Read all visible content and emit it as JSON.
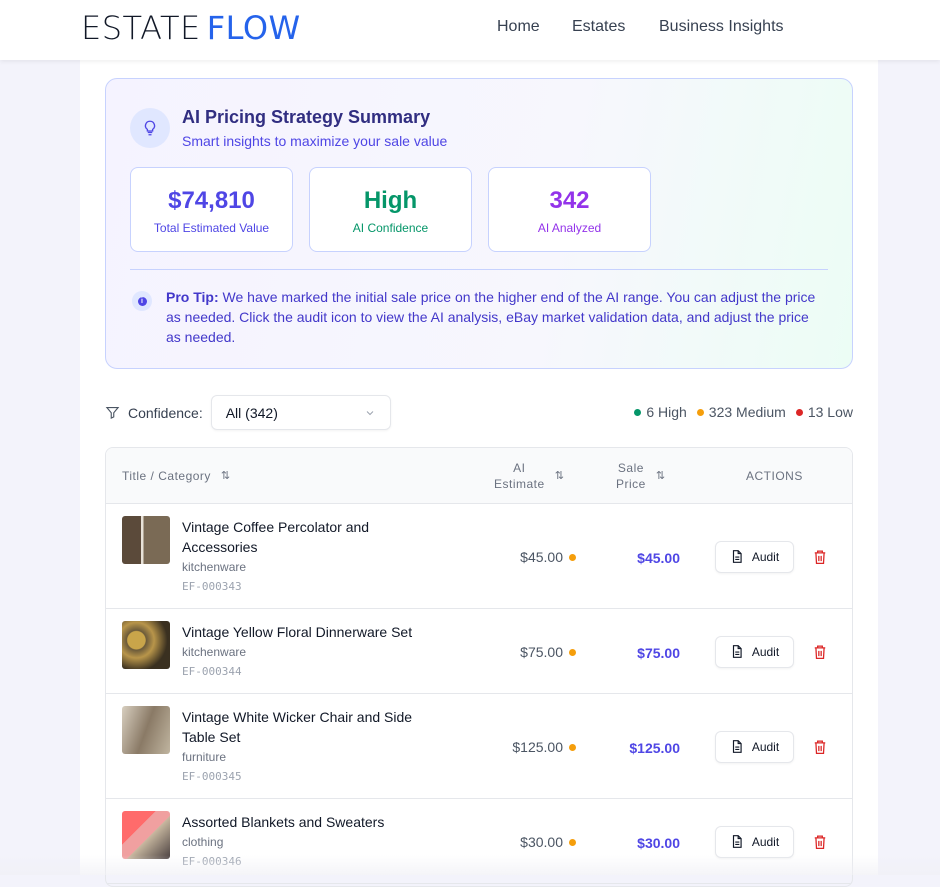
{
  "header": {
    "logo_a": "ESTATE",
    "logo_b": "FLOW",
    "nav": [
      "Home",
      "Estates",
      "Business Insights"
    ]
  },
  "summary": {
    "title": "AI Pricing Strategy Summary",
    "subtitle": "Smart insights to maximize your sale value",
    "stats": [
      {
        "value": "$74,810",
        "label": "Total Estimated Value",
        "color": "#4f46e5"
      },
      {
        "value": "High",
        "label": "AI Confidence",
        "color": "#059669"
      },
      {
        "value": "342",
        "label": "AI Analyzed",
        "color": "#9333ea"
      }
    ],
    "tip_label": "Pro Tip:",
    "tip_text": " We have marked the initial sale price on the higher end of the AI range. You can adjust the price as needed. Click the audit icon to view the AI analysis, eBay market validation data, and adjust the price as needed."
  },
  "filter": {
    "label": "Confidence:",
    "value": "All (342)"
  },
  "counts": [
    {
      "text": "6 High",
      "color": "#059669"
    },
    {
      "text": "323 Medium",
      "color": "#f59e0b"
    },
    {
      "text": "13 Low",
      "color": "#dc2626"
    }
  ],
  "table": {
    "headers": {
      "title": "Title / Category",
      "estimate_1": "AI",
      "estimate_2": "Estimate",
      "price_1": "Sale",
      "price_2": "Price",
      "actions": "ACTIONS"
    },
    "audit_label": "Audit",
    "rows": [
      {
        "title": "Vintage Coffee Percolator and Accessories",
        "category": "kitchenware",
        "sku": "EF-000343",
        "estimate": "$45.00",
        "price": "$45.00",
        "confidence": "medium"
      },
      {
        "title": "Vintage Yellow Floral Dinnerware Set",
        "category": "kitchenware",
        "sku": "EF-000344",
        "estimate": "$75.00",
        "price": "$75.00",
        "confidence": "medium"
      },
      {
        "title": "Vintage White Wicker Chair and Side Table Set",
        "category": "furniture",
        "sku": "EF-000345",
        "estimate": "$125.00",
        "price": "$125.00",
        "confidence": "medium"
      },
      {
        "title": "Assorted Blankets and Sweaters",
        "category": "clothing",
        "sku": "EF-000346",
        "estimate": "$30.00",
        "price": "$30.00",
        "confidence": "medium"
      }
    ]
  }
}
